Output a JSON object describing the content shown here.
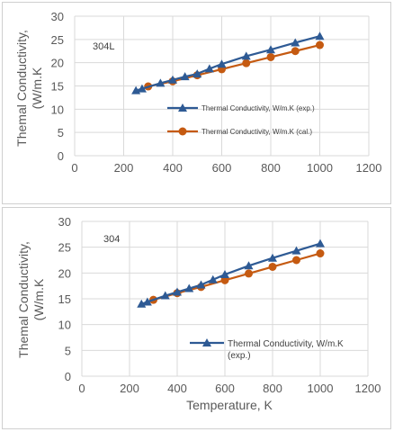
{
  "chart_data": [
    {
      "type": "line",
      "annotation": "304L",
      "ylabel": "Themal Conductivity, (W/m.K",
      "xlabel": "",
      "xlim": [
        0,
        1200
      ],
      "ylim": [
        0,
        30
      ],
      "xticks": [
        "0",
        "200",
        "400",
        "600",
        "800",
        "1000",
        "1200"
      ],
      "yticks": [
        "0",
        "5",
        "10",
        "15",
        "20",
        "25",
        "30"
      ],
      "grid": true,
      "legend_position": "center-right",
      "series": [
        {
          "name": "Thermal Conductivity, W/m.K (exp.)",
          "marker": "triangle",
          "color": "#2e5a94",
          "x": [
            250,
            275,
            350,
            400,
            450,
            500,
            550,
            600,
            700,
            800,
            900,
            1000
          ],
          "y": [
            14.0,
            14.4,
            15.6,
            16.3,
            17.0,
            17.6,
            18.7,
            19.7,
            21.4,
            22.8,
            24.3,
            25.7
          ]
        },
        {
          "name": "Thermal Conductivity, W/m.K (cal.)",
          "marker": "circle",
          "color": "#c55a11",
          "x": [
            300,
            400,
            500,
            600,
            700,
            800,
            900,
            1000
          ],
          "y": [
            14.9,
            16.0,
            17.3,
            18.6,
            19.9,
            21.2,
            22.5,
            23.8
          ]
        }
      ]
    },
    {
      "type": "line",
      "annotation": "304",
      "ylabel": "Themal Conductivity, (W/m.K",
      "xlabel": "Temperature, K",
      "xlim": [
        0,
        1200
      ],
      "ylim": [
        0,
        30
      ],
      "xticks": [
        "0",
        "200",
        "400",
        "600",
        "800",
        "1000",
        "1200"
      ],
      "yticks": [
        "0",
        "5",
        "10",
        "15",
        "20",
        "25",
        "30"
      ],
      "grid": true,
      "legend_position": "bottom-right",
      "legend_lines": [
        "Thermal Conductivity, W/m.K",
        "(exp.)"
      ],
      "series": [
        {
          "name": "Thermal Conductivity, W/m.K (exp.)",
          "marker": "triangle",
          "color": "#2e5a94",
          "x": [
            250,
            275,
            350,
            400,
            450,
            500,
            550,
            600,
            700,
            800,
            900,
            1000
          ],
          "y": [
            14.0,
            14.4,
            15.6,
            16.3,
            17.0,
            17.7,
            18.7,
            19.7,
            21.4,
            22.9,
            24.3,
            25.7
          ]
        },
        {
          "name": "",
          "marker": "circle",
          "color": "#c55a11",
          "x": [
            300,
            400,
            500,
            600,
            700,
            800,
            900,
            1000
          ],
          "y": [
            14.8,
            16.1,
            17.3,
            18.6,
            19.9,
            21.2,
            22.5,
            23.8
          ]
        }
      ]
    }
  ]
}
